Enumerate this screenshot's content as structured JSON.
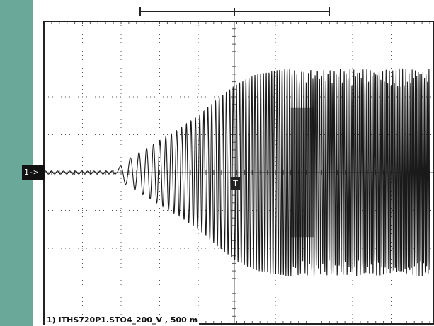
{
  "colors": {
    "left_band": "#6aa89a",
    "trace": "#1a1a1a",
    "grid": "#555555",
    "background": "#ffffff"
  },
  "channel_marker": "1->",
  "trigger_marker": "T",
  "status_line": "1) ITHS720P1.STO4_200_V , 500 m",
  "chart_data": {
    "type": "line",
    "title": "",
    "xlabel": "",
    "ylabel": "",
    "grid": true,
    "xdivisions": 10,
    "ydivisions": 8,
    "xlim": [
      0,
      10
    ],
    "ylim": [
      -4,
      4
    ],
    "series": [
      {
        "envelope_x": [
          0,
          1.9,
          2.1,
          2.5,
          3.0,
          3.5,
          4.0,
          4.5,
          5.0,
          5.5,
          6.0,
          6.4,
          10
        ],
        "envelope_amplitude": [
          0.05,
          0.08,
          0.3,
          0.55,
          0.85,
          1.15,
          1.5,
          1.95,
          2.35,
          2.6,
          2.7,
          2.75,
          2.75
        ]
      }
    ]
  }
}
